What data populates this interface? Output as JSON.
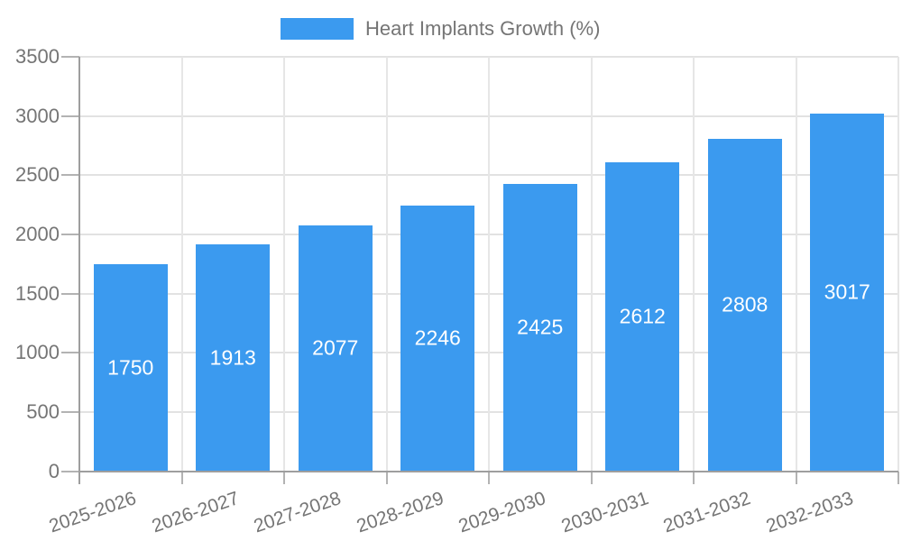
{
  "legend": {
    "label": "Heart Implants Growth (%)"
  },
  "chart_data": {
    "type": "bar",
    "title": "",
    "legend_entries": [
      "Heart Implants Growth (%)"
    ],
    "legend_position": "top",
    "categories": [
      "2025-2026",
      "2026-2027",
      "2027-2028",
      "2028-2029",
      "2029-2030",
      "2030-2031",
      "2031-2032",
      "2032-2033"
    ],
    "series": [
      {
        "name": "Heart Implants Growth (%)",
        "values": [
          1750,
          1913,
          2077,
          2246,
          2425,
          2612,
          2808,
          3017
        ]
      }
    ],
    "value_labels": [
      "1750",
      "1913",
      "2077",
      "2246",
      "2425",
      "2612",
      "2808",
      "3017"
    ],
    "xlabel": "",
    "ylabel": "",
    "ylim": [
      0,
      3500
    ],
    "ytick_step": 500,
    "ytick_labels": [
      "0",
      "500",
      "1000",
      "1500",
      "2000",
      "2500",
      "3000",
      "3500"
    ],
    "grid": true,
    "colors": {
      "bar": "#3B9AEF",
      "axis_text": "#757575",
      "value_text": "#ffffff",
      "axis_line": "#9e9e9e",
      "gridline_h": "#e2e2e2",
      "gridline_v": "#e6e6e6",
      "tick": "#b3b3b3",
      "background": "#ffffff"
    }
  }
}
